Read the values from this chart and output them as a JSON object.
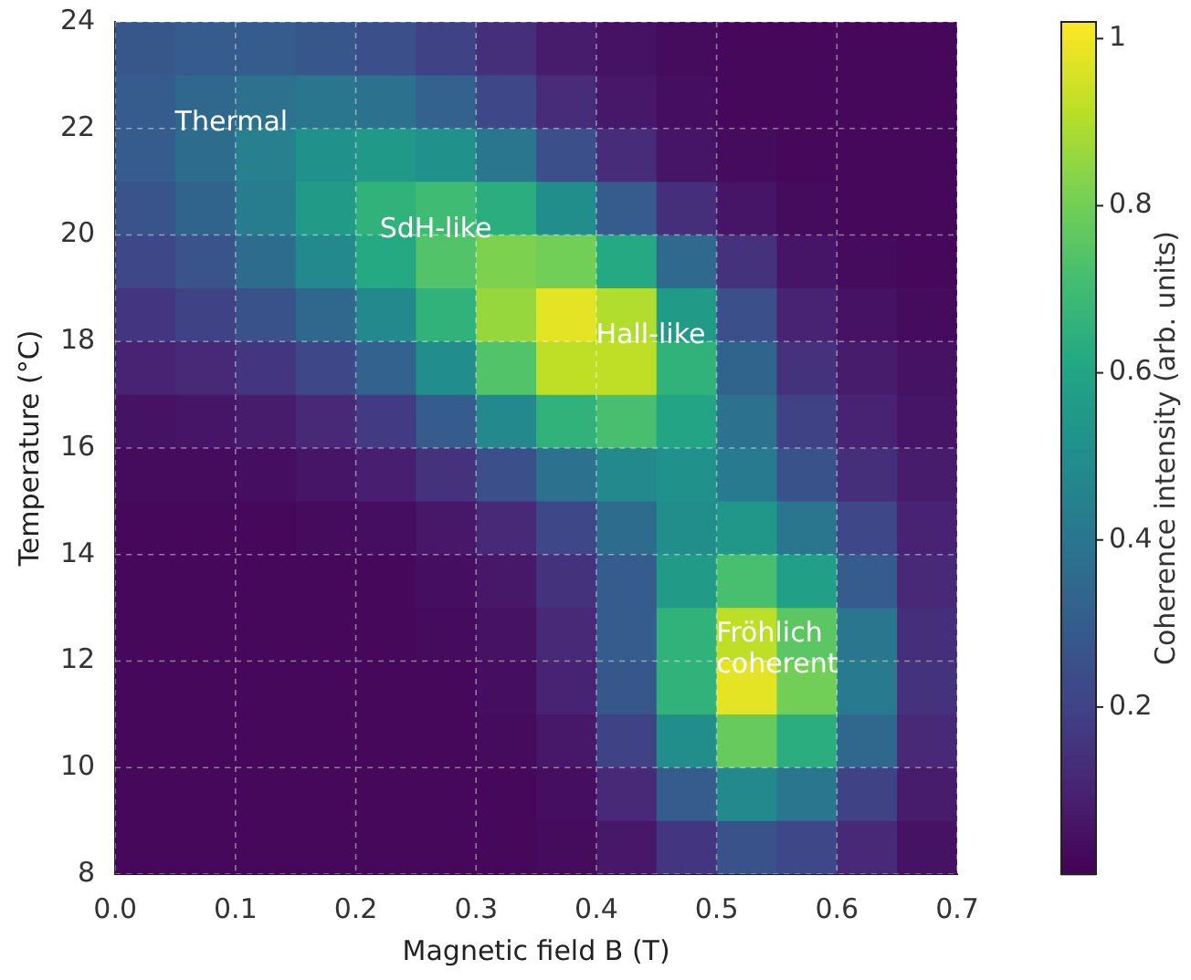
{
  "chart_data": {
    "type": "heatmap",
    "xlabel": "Magnetic field B (T)",
    "ylabel": "Temperature (°C)",
    "clabel": "Coherence intensity (arb. units)",
    "x": [
      0.025,
      0.075,
      0.125,
      0.175,
      0.225,
      0.275,
      0.325,
      0.375,
      0.425,
      0.475,
      0.525,
      0.575,
      0.625,
      0.675
    ],
    "y": [
      23.5,
      22.5,
      21.5,
      20.5,
      19.5,
      18.5,
      17.5,
      16.5,
      15.5,
      14.5,
      13.5,
      12.5,
      11.5,
      10.5,
      9.5,
      8.5
    ],
    "cells": [
      [
        0.28,
        0.3,
        0.3,
        0.28,
        0.25,
        0.2,
        0.14,
        0.08,
        0.05,
        0.03,
        0.02,
        0.02,
        0.02,
        0.02
      ],
      [
        0.3,
        0.34,
        0.38,
        0.4,
        0.38,
        0.32,
        0.22,
        0.13,
        0.07,
        0.04,
        0.02,
        0.02,
        0.02,
        0.02
      ],
      [
        0.3,
        0.36,
        0.44,
        0.52,
        0.55,
        0.52,
        0.4,
        0.25,
        0.13,
        0.06,
        0.03,
        0.02,
        0.02,
        0.02
      ],
      [
        0.27,
        0.33,
        0.43,
        0.56,
        0.66,
        0.7,
        0.64,
        0.5,
        0.3,
        0.14,
        0.06,
        0.03,
        0.02,
        0.02
      ],
      [
        0.22,
        0.27,
        0.36,
        0.48,
        0.62,
        0.74,
        0.82,
        0.8,
        0.62,
        0.35,
        0.15,
        0.06,
        0.03,
        0.02
      ],
      [
        0.16,
        0.2,
        0.26,
        0.34,
        0.48,
        0.66,
        0.86,
        0.98,
        0.9,
        0.56,
        0.25,
        0.1,
        0.05,
        0.03
      ],
      [
        0.1,
        0.12,
        0.16,
        0.22,
        0.32,
        0.5,
        0.74,
        0.92,
        0.92,
        0.66,
        0.33,
        0.15,
        0.08,
        0.05
      ],
      [
        0.05,
        0.06,
        0.08,
        0.12,
        0.18,
        0.3,
        0.48,
        0.66,
        0.72,
        0.6,
        0.38,
        0.2,
        0.1,
        0.06
      ],
      [
        0.03,
        0.03,
        0.04,
        0.06,
        0.09,
        0.15,
        0.25,
        0.38,
        0.48,
        0.52,
        0.42,
        0.26,
        0.14,
        0.08
      ],
      [
        0.02,
        0.02,
        0.02,
        0.03,
        0.04,
        0.07,
        0.12,
        0.22,
        0.36,
        0.5,
        0.54,
        0.4,
        0.22,
        0.1
      ],
      [
        0.02,
        0.02,
        0.02,
        0.02,
        0.02,
        0.04,
        0.07,
        0.15,
        0.3,
        0.56,
        0.72,
        0.58,
        0.3,
        0.12
      ],
      [
        0.02,
        0.02,
        0.02,
        0.02,
        0.02,
        0.03,
        0.05,
        0.12,
        0.3,
        0.66,
        0.92,
        0.76,
        0.4,
        0.14
      ],
      [
        0.02,
        0.02,
        0.02,
        0.02,
        0.02,
        0.02,
        0.04,
        0.1,
        0.28,
        0.66,
        0.98,
        0.8,
        0.42,
        0.15
      ],
      [
        0.02,
        0.02,
        0.02,
        0.02,
        0.02,
        0.02,
        0.03,
        0.07,
        0.2,
        0.5,
        0.78,
        0.64,
        0.34,
        0.12
      ],
      [
        0.02,
        0.02,
        0.02,
        0.02,
        0.02,
        0.02,
        0.02,
        0.04,
        0.12,
        0.3,
        0.48,
        0.4,
        0.2,
        0.08
      ],
      [
        0.02,
        0.02,
        0.02,
        0.02,
        0.02,
        0.02,
        0.02,
        0.03,
        0.07,
        0.16,
        0.26,
        0.22,
        0.12,
        0.05
      ]
    ],
    "clim": [
      0,
      1.02
    ],
    "cticks": [
      0.2,
      0.4,
      0.6,
      0.8,
      1.0
    ],
    "xlim": [
      0,
      0.7
    ],
    "xticks": [
      {
        "value": 0,
        "label": "0.0"
      },
      0.1,
      0.2,
      0.3,
      0.4,
      0.5,
      0.6,
      0.7
    ],
    "ylim": [
      8,
      24
    ],
    "yticks": [
      8,
      10,
      12,
      14,
      16,
      18,
      20,
      22,
      24
    ],
    "grid": true,
    "annotations": [
      "Thermal",
      "SdH-like",
      "Hall-like",
      "Fröhlich\ncoherent"
    ]
  }
}
